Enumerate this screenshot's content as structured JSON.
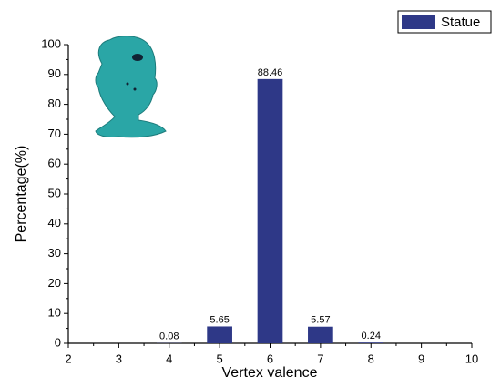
{
  "chart_data": {
    "type": "bar",
    "x": [
      4,
      5,
      6,
      7,
      8
    ],
    "series": [
      {
        "name": "Statue",
        "color": "#2e3887",
        "values": [
          0.08,
          5.65,
          88.46,
          5.57,
          0.24
        ]
      }
    ],
    "xlim": [
      2,
      10
    ],
    "xticks": [
      2,
      3,
      4,
      5,
      6,
      7,
      8,
      9,
      10
    ],
    "ylim": [
      0,
      100
    ],
    "yticks": [
      0,
      10,
      20,
      30,
      40,
      50,
      60,
      70,
      80,
      90,
      100
    ],
    "xlabel": "Vertex valence",
    "ylabel": "Percentage(%)",
    "legend": "upper right"
  }
}
